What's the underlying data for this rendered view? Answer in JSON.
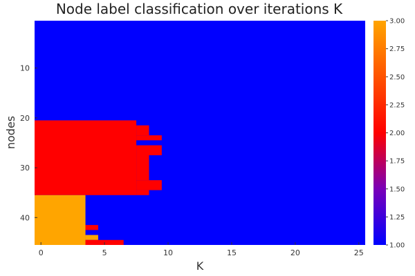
{
  "chart_data": {
    "type": "heatmap",
    "title": "Node label classification over iterations K",
    "xlabel": "K",
    "ylabel": "nodes",
    "x_range": [
      -0.5,
      25.5
    ],
    "y_range": [
      0.5,
      45.5
    ],
    "y_reversed": true,
    "x_ticks": [
      0,
      5,
      10,
      15,
      20,
      25
    ],
    "y_ticks": [
      10,
      20,
      30,
      40
    ],
    "grid": false,
    "legend": "colorbar-right",
    "colorbar": {
      "min": 1.0,
      "max": 3.0,
      "ticks": [
        "1.00",
        "1.25",
        "1.50",
        "1.75",
        "2.00",
        "2.25",
        "2.50",
        "2.75",
        "3.00"
      ],
      "stops": [
        "#0000ff",
        "#7a00b8",
        "#ff0000",
        "#ffa500"
      ]
    },
    "default_value": 1,
    "regions": [
      {
        "value": 2,
        "rows": [
          21,
          35
        ],
        "k": [
          0,
          7
        ]
      },
      {
        "value": 2,
        "rows": [
          22,
          23
        ],
        "k": [
          8,
          8
        ]
      },
      {
        "value": 2,
        "rows": [
          24,
          24
        ],
        "k": [
          8,
          9
        ]
      },
      {
        "value": 2,
        "rows": [
          26,
          27
        ],
        "k": [
          8,
          9
        ]
      },
      {
        "value": 2,
        "rows": [
          28,
          32
        ],
        "k": [
          8,
          8
        ]
      },
      {
        "value": 2,
        "rows": [
          33,
          34
        ],
        "k": [
          8,
          9
        ]
      },
      {
        "value": 2,
        "rows": [
          35,
          35
        ],
        "k": [
          8,
          8
        ]
      },
      {
        "value": 3,
        "rows": [
          36,
          45
        ],
        "k": [
          0,
          3
        ]
      },
      {
        "value": 2,
        "rows": [
          42,
          42
        ],
        "k": [
          4,
          4
        ]
      },
      {
        "value": 3,
        "rows": [
          44,
          44
        ],
        "k": [
          4,
          4
        ]
      },
      {
        "value": 2,
        "rows": [
          45,
          45
        ],
        "k": [
          4,
          6
        ]
      }
    ]
  }
}
